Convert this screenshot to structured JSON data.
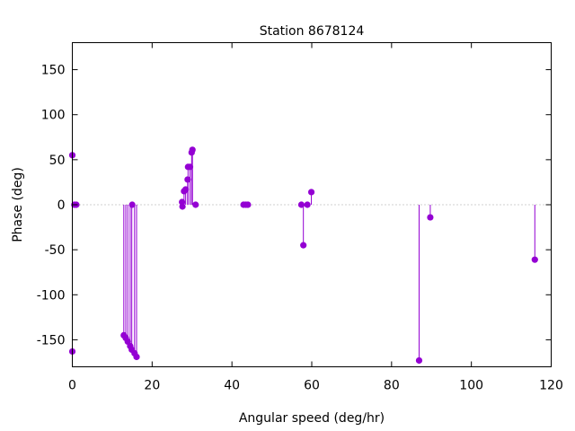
{
  "chart_data": {
    "type": "stem",
    "title": "Station 8678124",
    "xlabel": "Angular speed (deg/hr)",
    "ylabel": "Phase (deg)",
    "xlim": [
      0,
      120
    ],
    "ylim": [
      -180,
      180
    ],
    "xticks": [
      0,
      20,
      40,
      60,
      80,
      100,
      120
    ],
    "yticks": [
      -150,
      -100,
      -50,
      0,
      50,
      100,
      150
    ],
    "grid": false,
    "zero_line": true,
    "series_color": "#9400d3",
    "points": [
      {
        "x": 0.0,
        "y": 55
      },
      {
        "x": 0.0,
        "y": -163
      },
      {
        "x": 0.5,
        "y": 0
      },
      {
        "x": 1.0,
        "y": 0
      },
      {
        "x": 12.9,
        "y": -145
      },
      {
        "x": 13.4,
        "y": -148
      },
      {
        "x": 13.9,
        "y": -152
      },
      {
        "x": 14.5,
        "y": -157
      },
      {
        "x": 14.9,
        "y": -161
      },
      {
        "x": 15.0,
        "y": 0
      },
      {
        "x": 15.6,
        "y": -165
      },
      {
        "x": 16.1,
        "y": -169
      },
      {
        "x": 27.5,
        "y": 3
      },
      {
        "x": 27.6,
        "y": -2
      },
      {
        "x": 28.0,
        "y": 15
      },
      {
        "x": 28.4,
        "y": 17
      },
      {
        "x": 28.9,
        "y": 28
      },
      {
        "x": 29.0,
        "y": 42
      },
      {
        "x": 29.5,
        "y": 42
      },
      {
        "x": 29.9,
        "y": 58
      },
      {
        "x": 30.1,
        "y": 61
      },
      {
        "x": 30.9,
        "y": 0
      },
      {
        "x": 42.9,
        "y": 0
      },
      {
        "x": 43.5,
        "y": 0
      },
      {
        "x": 44.0,
        "y": 0
      },
      {
        "x": 57.4,
        "y": 0
      },
      {
        "x": 57.9,
        "y": -45
      },
      {
        "x": 58.9,
        "y": 0
      },
      {
        "x": 59.9,
        "y": 14
      },
      {
        "x": 86.9,
        "y": -173
      },
      {
        "x": 89.7,
        "y": -14
      },
      {
        "x": 115.9,
        "y": -61
      }
    ]
  }
}
